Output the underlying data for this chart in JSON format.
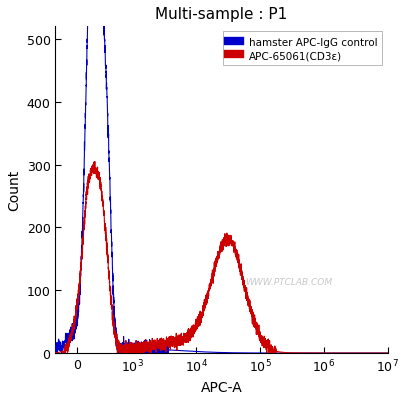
{
  "title": "Multi-sample : P1",
  "xlabel": "APC-A",
  "ylabel": "Count",
  "ylim": [
    0,
    520
  ],
  "yticks": [
    0,
    100,
    200,
    300,
    400,
    500
  ],
  "legend_labels": [
    "hamster APC-IgG control",
    "APC-65061(CD3ε)"
  ],
  "legend_colors": [
    "#0000cc",
    "#cc0000"
  ],
  "blue_color": "#0000cc",
  "red_color": "#cc0000",
  "bg_color": "#ffffff",
  "plot_bg": "#ffffff",
  "watermark": "WWW.PTCLAB.COM",
  "linthresh": 200,
  "linscale": 0.15,
  "xmin": -300,
  "xmax": 10000000.0,
  "xticks": [
    0,
    1000,
    10000,
    100000,
    1000000,
    10000000
  ]
}
